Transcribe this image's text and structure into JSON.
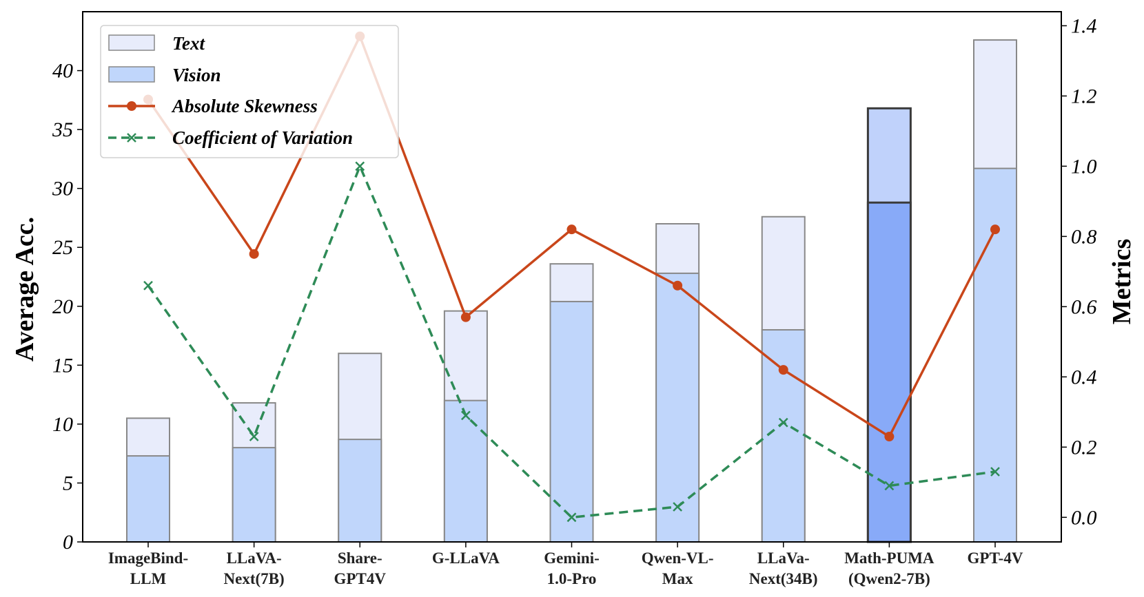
{
  "chart_data": {
    "type": "bar",
    "categories": [
      [
        "ImageBind-",
        "LLM"
      ],
      [
        "LLaVA-",
        "Next(7B)"
      ],
      [
        "Share-",
        "GPT4V"
      ],
      [
        "G-LLaVA"
      ],
      [
        "Gemini-",
        "1.0-Pro"
      ],
      [
        "Qwen-VL-",
        "Max"
      ],
      [
        "LLaVa-",
        "Next(34B)"
      ],
      [
        "Math-PUMA",
        "(Qwen2-7B)"
      ],
      [
        "GPT-4V"
      ]
    ],
    "series": [
      {
        "name": "Text",
        "type": "bar",
        "axis": "left",
        "values": [
          10.5,
          11.8,
          16.0,
          19.6,
          23.6,
          27.0,
          27.6,
          36.8,
          42.6
        ]
      },
      {
        "name": "Vision",
        "type": "bar",
        "axis": "left",
        "values": [
          7.3,
          8.0,
          8.7,
          12.0,
          20.4,
          22.8,
          18.0,
          28.8,
          31.7
        ]
      },
      {
        "name": "Absolute Skewness",
        "type": "line",
        "axis": "right",
        "values": [
          1.19,
          0.75,
          1.37,
          0.57,
          0.82,
          0.66,
          0.42,
          0.23,
          0.82
        ]
      },
      {
        "name": "Coefficient of Variation",
        "type": "line",
        "axis": "right",
        "values": [
          0.66,
          0.23,
          1.0,
          0.29,
          0.0,
          0.03,
          0.27,
          0.09,
          0.13
        ]
      }
    ],
    "highlight_index": 7,
    "ylabel": "Average Acc.",
    "y2label": "Metrics",
    "ylim": [
      0,
      45
    ],
    "y2lim": [
      -0.07,
      1.44
    ],
    "yticks": [
      "0",
      "5",
      "10",
      "15",
      "20",
      "25",
      "30",
      "35",
      "40"
    ],
    "y2ticks": [
      "0.0",
      "0.2",
      "0.4",
      "0.6",
      "0.8",
      "1.0",
      "1.2",
      "1.4"
    ],
    "legend_position": "top-left",
    "colors": {
      "text_fill": "#e8ecfb",
      "vision_fill": "#c0d6fb",
      "highlight_text_fill": "#c0d2fb",
      "highlight_vision_fill": "#88aaf8",
      "bar_edge": "#888888",
      "highlight_edge": "#3a3a3a",
      "skew_line": "#c9461a",
      "cov_line": "#2e8b57"
    }
  }
}
